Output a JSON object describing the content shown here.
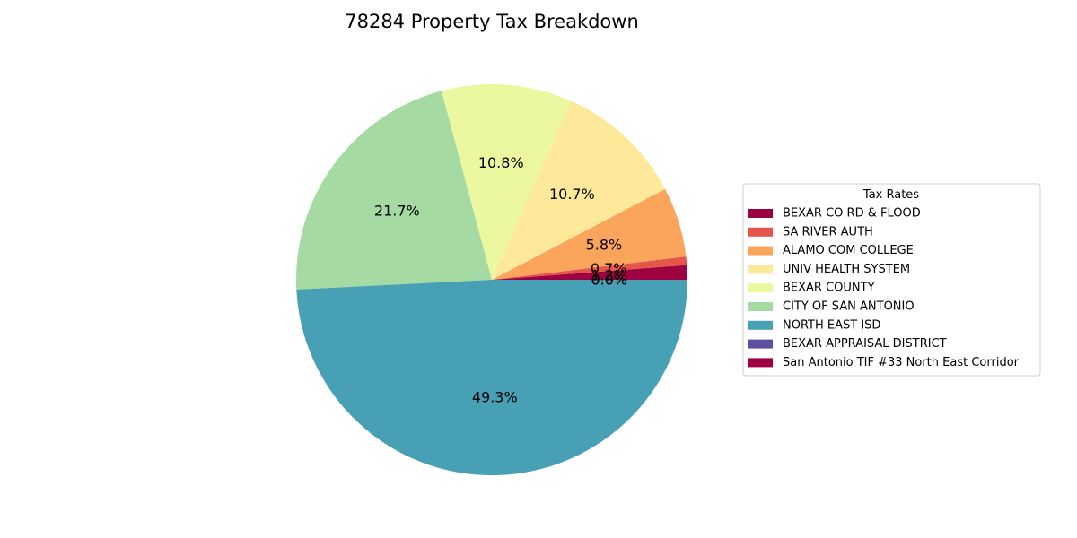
{
  "chart_data": {
    "type": "pie",
    "title": "78284 Property Tax Breakdown",
    "legend": {
      "title": "Tax Rates",
      "placement": "right"
    },
    "slices": [
      {
        "label": "BEXAR CO RD & FLOOD",
        "value": 1.2,
        "pct_label": "1.2%",
        "color": "#9e0142"
      },
      {
        "label": "SA RIVER AUTH",
        "value": 0.7,
        "pct_label": "0.7%",
        "color": "#e55549"
      },
      {
        "label": "ALAMO COM COLLEGE",
        "value": 5.8,
        "pct_label": "5.8%",
        "color": "#fba55c"
      },
      {
        "label": "UNIV HEALTH SYSTEM",
        "value": 10.7,
        "pct_label": "10.7%",
        "color": "#fee899"
      },
      {
        "label": "BEXAR COUNTY",
        "value": 10.8,
        "pct_label": "10.8%",
        "color": "#ebf8a0"
      },
      {
        "label": "CITY OF SAN ANTONIO",
        "value": 21.7,
        "pct_label": "21.7%",
        "color": "#a5dba3"
      },
      {
        "label": "NORTH EAST ISD",
        "value": 49.3,
        "pct_label": "49.3%",
        "color": "#48a0b5"
      },
      {
        "label": "BEXAR APPRAISAL DISTRICT",
        "value": 0.0,
        "pct_label": "0.0%",
        "color": "#5e4fa2"
      },
      {
        "label": "San Antonio TIF #33 North East Corridor",
        "value": 0.0,
        "pct_label": "0.0%",
        "color": "#9e0142"
      }
    ]
  }
}
